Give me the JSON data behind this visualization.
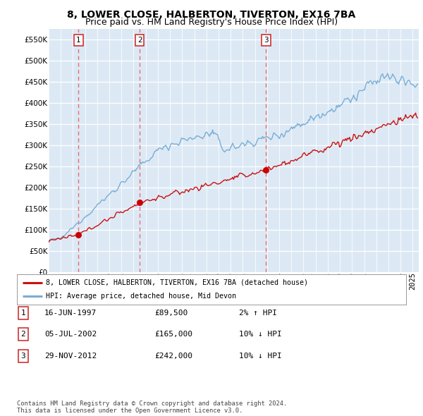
{
  "title": "8, LOWER CLOSE, HALBERTON, TIVERTON, EX16 7BA",
  "subtitle": "Price paid vs. HM Land Registry's House Price Index (HPI)",
  "ylim": [
    0,
    575000
  ],
  "yticks": [
    0,
    50000,
    100000,
    150000,
    200000,
    250000,
    300000,
    350000,
    400000,
    450000,
    500000,
    550000
  ],
  "xlim_start": 1995.0,
  "xlim_end": 2025.5,
  "plot_bg_color": "#dce9f5",
  "sales": [
    {
      "date": 1997.46,
      "price": 89500,
      "label": "1"
    },
    {
      "date": 2002.51,
      "price": 165000,
      "label": "2"
    },
    {
      "date": 2012.91,
      "price": 242000,
      "label": "3"
    }
  ],
  "sale_line_color": "#ee4444",
  "sale_dot_color": "#cc0000",
  "hpi_line_color": "#7aadd4",
  "price_line_color": "#cc1111",
  "legend_entries": [
    "8, LOWER CLOSE, HALBERTON, TIVERTON, EX16 7BA (detached house)",
    "HPI: Average price, detached house, Mid Devon"
  ],
  "table_rows": [
    {
      "num": "1",
      "date": "16-JUN-1997",
      "price": "£89,500",
      "hpi": "2% ↑ HPI"
    },
    {
      "num": "2",
      "date": "05-JUL-2002",
      "price": "£165,000",
      "hpi": "10% ↓ HPI"
    },
    {
      "num": "3",
      "date": "29-NOV-2012",
      "price": "£242,000",
      "hpi": "10% ↓ HPI"
    }
  ],
  "footer": "Contains HM Land Registry data © Crown copyright and database right 2024.\nThis data is licensed under the Open Government Licence v3.0.",
  "title_fontsize": 10,
  "subtitle_fontsize": 9,
  "tick_fontsize": 7.5
}
